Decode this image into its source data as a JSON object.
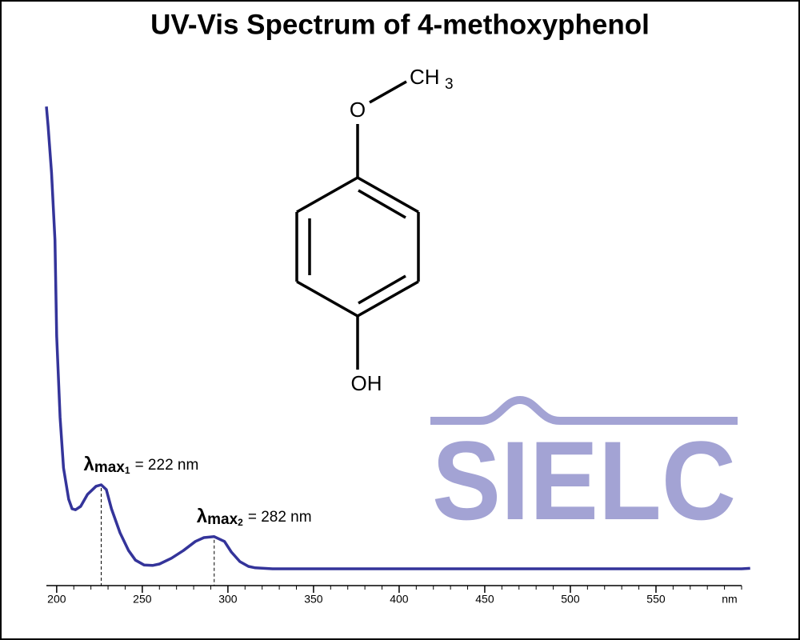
{
  "chart_data": {
    "type": "line",
    "title": "UV-Vis Spectrum of 4-methoxyphenol",
    "xlabel": "nm",
    "x": [
      194,
      195,
      197,
      199,
      200,
      202,
      204,
      207,
      209,
      211,
      214,
      218,
      223,
      226,
      229,
      232,
      237,
      242,
      246,
      251,
      256,
      260,
      267,
      274,
      281,
      286,
      292,
      298,
      302,
      307,
      312,
      316,
      326,
      400,
      450,
      500,
      550,
      600,
      605
    ],
    "series": [
      {
        "color": "#34349a",
        "values": [
          99.8,
          95.7,
          86,
          72,
          52,
          35,
          24.5,
          18,
          16,
          15.8,
          16.5,
          19,
          20.7,
          21,
          20,
          16,
          11,
          7.3,
          5.3,
          4.3,
          4.2,
          4.5,
          5.7,
          7.3,
          9.2,
          10,
          10.2,
          9.2,
          7,
          5,
          4,
          3.7,
          3.5,
          3.5,
          3.5,
          3.5,
          3.5,
          3.5,
          3.6
        ]
      }
    ],
    "xlim": [
      194,
      600
    ],
    "ylim": [
      0,
      100
    ],
    "xticks": [
      200,
      250,
      300,
      350,
      400,
      450,
      500,
      550
    ],
    "xminorticks": [
      210,
      220,
      230,
      240,
      260,
      270,
      280,
      290,
      310,
      320,
      330,
      340,
      360,
      370,
      380,
      390,
      410,
      420,
      430,
      440,
      460,
      470,
      480,
      490,
      510,
      520,
      530,
      540,
      560,
      570,
      580,
      590,
      600
    ],
    "annotations": [
      {
        "symbol": "λ",
        "sub": "max",
        "index": "1",
        "text": "= 222 nm"
      },
      {
        "symbol": "λ",
        "sub": "max",
        "index": "2",
        "text": "= 282 nm"
      }
    ],
    "structure": {
      "oxygen": "O",
      "methyl": "CH",
      "methyl_count": "3",
      "hydroxyl": "OH"
    },
    "watermark": "SIELC"
  }
}
